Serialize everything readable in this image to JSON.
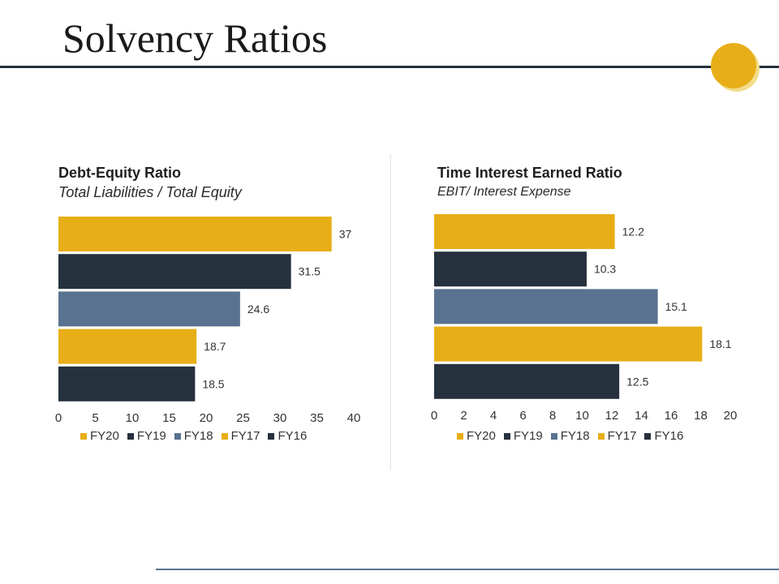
{
  "page": {
    "title": "Solvency Ratios"
  },
  "colors": {
    "accent": "#e7ae17",
    "dark": "#25313d",
    "steel": "#587290"
  },
  "chart_data": [
    {
      "type": "bar",
      "orientation": "horizontal",
      "title": "Debt-Equity Ratio",
      "subtitle": "Total Liabilities / Total Equity",
      "categories": [
        "FY20",
        "FY19",
        "FY18",
        "FY17",
        "FY16"
      ],
      "values": [
        37,
        31.5,
        24.6,
        18.7,
        18.5
      ],
      "value_labels": [
        "37",
        "31.5",
        "24.6",
        "18.7",
        "18.5"
      ],
      "bar_colors": [
        "#e7ae17",
        "#25313d",
        "#587290",
        "#e7ae17",
        "#25313d"
      ],
      "xlim": [
        0,
        40
      ],
      "xticks": [
        0,
        5,
        10,
        15,
        20,
        25,
        30,
        35,
        40
      ],
      "xlabel": "",
      "ylabel": "",
      "grid": false,
      "legend": [
        "FY20",
        "FY19",
        "FY18",
        "FY17",
        "FY16"
      ],
      "legend_position": "bottom"
    },
    {
      "type": "bar",
      "orientation": "horizontal",
      "title": "Time Interest Earned Ratio",
      "subtitle": "EBIT/ Interest Expense",
      "categories": [
        "FY20",
        "FY19",
        "FY18",
        "FY17",
        "FY16"
      ],
      "values": [
        12.2,
        10.3,
        15.1,
        18.1,
        12.5
      ],
      "value_labels": [
        "12.2",
        "10.3",
        "15.1",
        "18.1",
        "12.5"
      ],
      "bar_colors": [
        "#e7ae17",
        "#25313d",
        "#587290",
        "#e7ae17",
        "#25313d"
      ],
      "xlim": [
        0,
        20
      ],
      "xticks": [
        0,
        2,
        4,
        6,
        8,
        10,
        12,
        14,
        16,
        18,
        20
      ],
      "xlabel": "",
      "ylabel": "",
      "grid": false,
      "legend": [
        "FY20",
        "FY19",
        "FY18",
        "FY17",
        "FY16"
      ],
      "legend_position": "bottom"
    }
  ]
}
